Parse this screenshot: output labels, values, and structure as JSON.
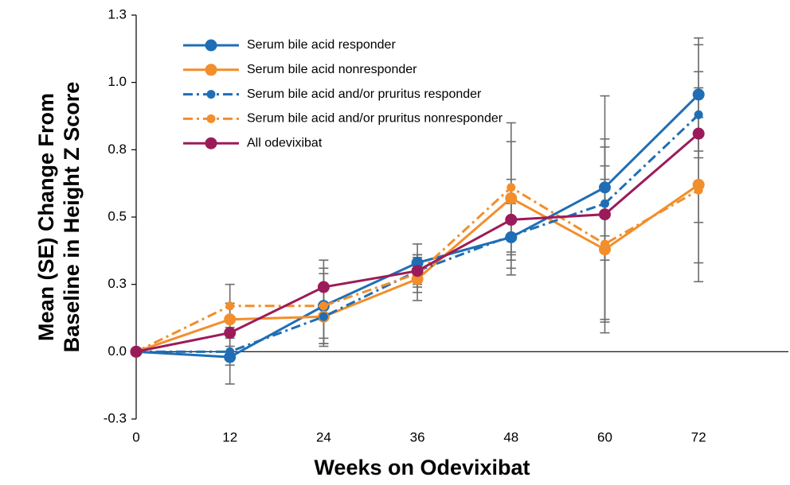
{
  "chart_data": {
    "type": "line",
    "xlabel": "Weeks on Odevixibat",
    "ylabel": [
      "Mean (SE) Change From",
      "Baseline in Height Z Score"
    ],
    "x": [
      0,
      12,
      24,
      36,
      48,
      60,
      72
    ],
    "xlim": [
      0,
      83.5
    ],
    "xticks": [
      0,
      12,
      24,
      36,
      48,
      60,
      72
    ],
    "ylim": [
      -0.25,
      1.25
    ],
    "yticks": [
      {
        "value": -0.25,
        "label": "-0.3"
      },
      {
        "value": 0,
        "label": "0.0"
      },
      {
        "value": 0.25,
        "label": "0.3"
      },
      {
        "value": 0.5,
        "label": "0.5"
      },
      {
        "value": 0.75,
        "label": "0.8"
      },
      {
        "value": 1.0,
        "label": "1.0"
      },
      {
        "value": 1.25,
        "label": "1.3"
      }
    ],
    "error_bar_color": "#6d6d6d",
    "legend": "upper left",
    "series": [
      {
        "name": "Serum bile acid responder",
        "color": "#1f6eb5",
        "dash": "solid",
        "values": [
          0,
          -0.02,
          0.17,
          0.33,
          0.425,
          0.61,
          0.955
        ],
        "errors": [
          null,
          0.1,
          0.12,
          0.07,
          0.14,
          0.18,
          0.21
        ]
      },
      {
        "name": "Serum bile acid nonresponder",
        "color": "#f28e2b",
        "dash": "solid",
        "values": [
          0,
          0.12,
          0.13,
          0.27,
          0.57,
          0.38,
          0.62
        ],
        "errors": [
          null,
          0.06,
          0.1,
          0.08,
          0.21,
          0.26,
          0.36
        ]
      },
      {
        "name": "Serum bile acid and/or pruritus responder",
        "color": "#1f6eb5",
        "dash": "dashdot",
        "values": [
          0,
          0,
          0.13,
          0.3,
          0.43,
          0.55,
          0.88
        ],
        "errors": [
          null,
          0.05,
          0.11,
          0.06,
          0.12,
          0.21,
          0.16
        ]
      },
      {
        "name": "Serum bile acid and/or pruritus nonresponder",
        "color": "#f28e2b",
        "dash": "dashdot",
        "values": [
          0,
          0.17,
          0.17,
          0.29,
          0.61,
          0.4,
          0.6
        ],
        "errors": [
          null,
          0.08,
          0.14,
          0.07,
          0.24,
          0.29,
          0.27
        ]
      },
      {
        "name": "All odevixibat",
        "color": "#9b1b5a",
        "dash": "solid",
        "values": [
          0,
          0.07,
          0.24,
          0.3,
          0.49,
          0.51,
          0.81
        ],
        "errors": [
          null,
          0.05,
          0.1,
          0.05,
          0.15,
          0.44,
          0.33
        ]
      }
    ]
  }
}
